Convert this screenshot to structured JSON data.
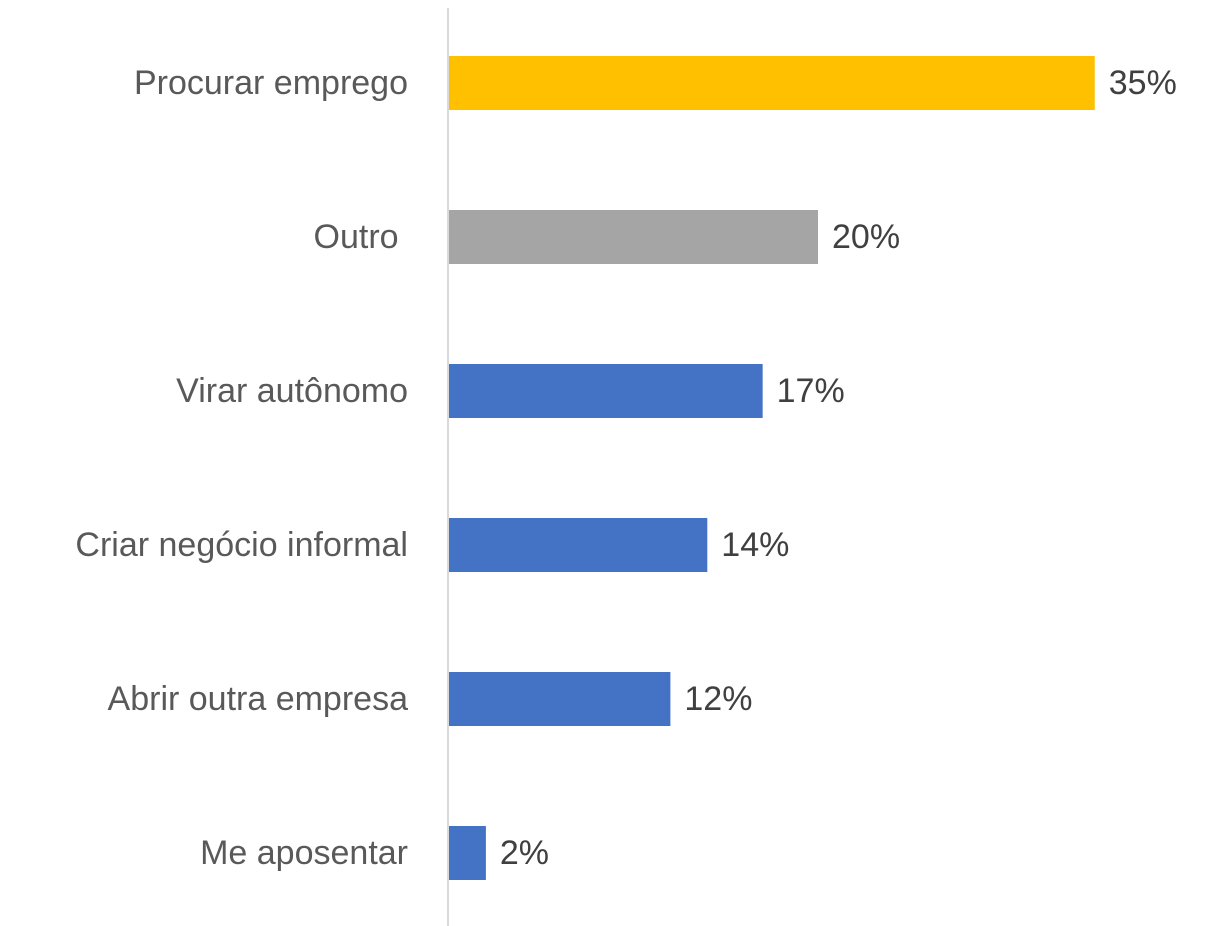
{
  "chart_data": {
    "type": "hbar",
    "categories": [
      "Procurar emprego",
      "Outro ",
      "Virar autônomo",
      "Criar negócio informal",
      "Abrir outra empresa",
      "Me aposentar"
    ],
    "values": [
      35,
      20,
      17,
      14,
      12,
      2
    ],
    "value_labels": [
      "35%",
      "20%",
      "17%",
      "14%",
      "12%",
      "2%"
    ],
    "colors": [
      "#ffc000",
      "#a5a5a5",
      "#4472c4",
      "#4472c4",
      "#4472c4",
      "#4472c4"
    ]
  }
}
